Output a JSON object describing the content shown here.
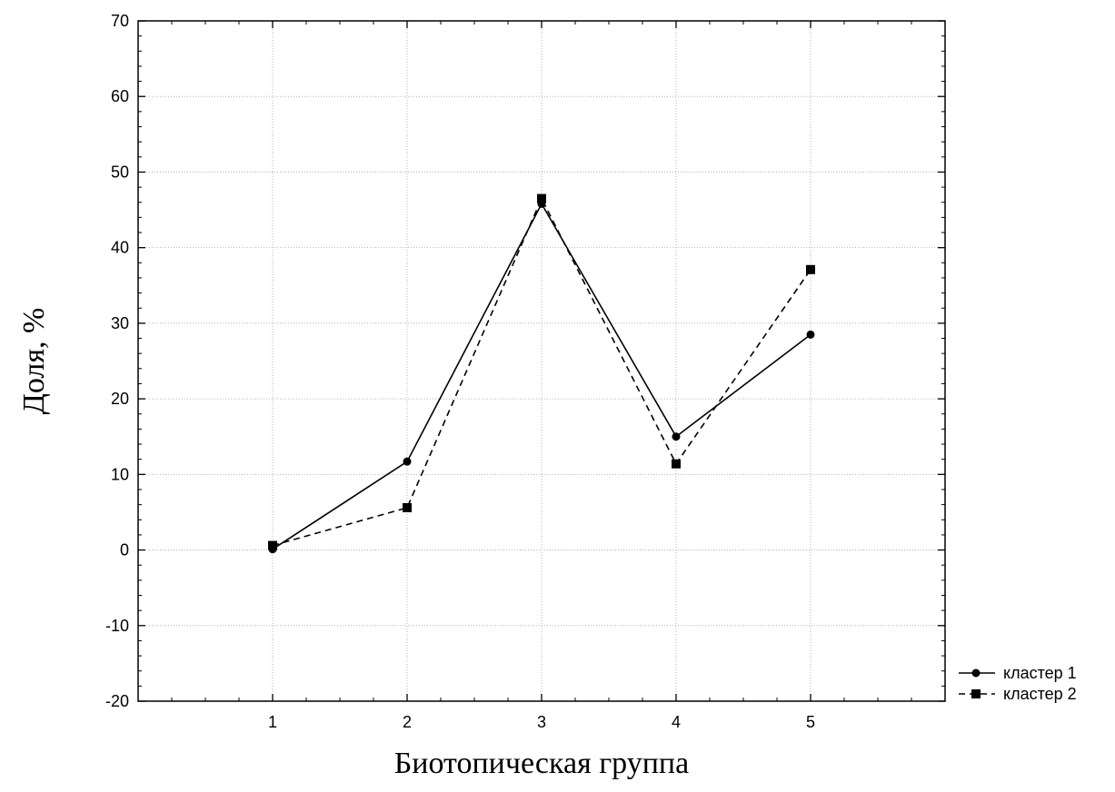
{
  "chart_data": {
    "type": "line",
    "title": "",
    "xlabel": "Биотопическая группа",
    "ylabel": "Доля, %",
    "x": [
      1,
      2,
      3,
      4,
      5
    ],
    "xlim": [
      0,
      6
    ],
    "ylim": [
      -20,
      70
    ],
    "xticks": [
      "1",
      "2",
      "3",
      "4",
      "5"
    ],
    "yticks": [
      "-20",
      "-10",
      "0",
      "10",
      "20",
      "30",
      "40",
      "50",
      "60",
      "70"
    ],
    "grid": true,
    "legend_position": "bottom-right, outside plot",
    "series": [
      {
        "name": "кластер 1",
        "values": [
          0.1,
          11.7,
          45.8,
          15.0,
          28.5
        ],
        "line": "solid",
        "marker": "circle",
        "color": "#000000"
      },
      {
        "name": "кластер 2",
        "values": [
          0.6,
          5.6,
          46.5,
          11.4,
          37.1
        ],
        "line": "dashed",
        "marker": "square",
        "color": "#000000"
      }
    ]
  }
}
